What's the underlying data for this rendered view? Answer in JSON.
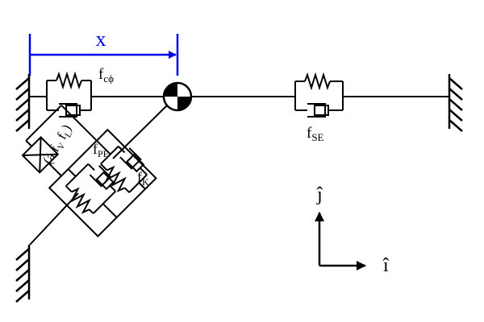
{
  "labels": {
    "x": "x",
    "f_c_base": "f",
    "f_c_sub": "cϕ",
    "f_se_base": "f",
    "f_se_sub": "SE",
    "f_pe_base": "f",
    "f_pe_sub": "PE",
    "f_k_base": "f",
    "f_k_sub": "K",
    "active_open": "(a f",
    "active_v": "V",
    "active_mid": " f",
    "active_l": "L",
    "active_close": ")",
    "j_hat": "ĵ",
    "i_hat": "î"
  },
  "colors": {
    "dimension": "#0000ee",
    "ink": "#000000"
  }
}
